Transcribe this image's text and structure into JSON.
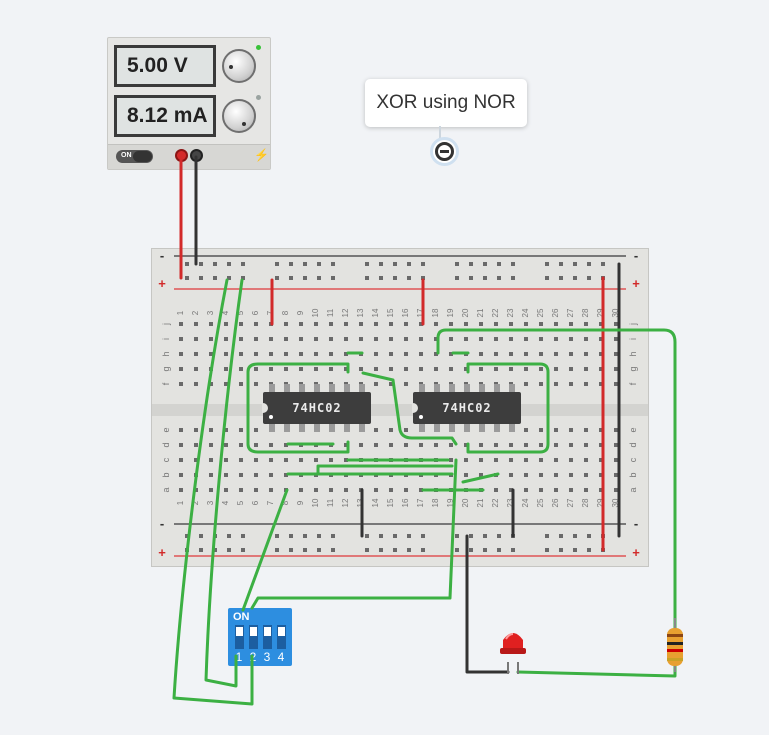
{
  "power_supply": {
    "voltage_display": "5.00 V",
    "current_display": "8.12 mA",
    "switch_label": "ON",
    "colors": {
      "positive_terminal": "#e02020",
      "negative_terminal": "#444444",
      "cv_led": "#38c238"
    }
  },
  "note": {
    "text": "XOR using NOR"
  },
  "breadboard": {
    "rail_signs_left": [
      "-",
      "+",
      "-",
      "+"
    ],
    "rail_signs_right": [
      "-",
      "+",
      "-",
      "+"
    ],
    "column_numbers": [
      1,
      2,
      3,
      4,
      5,
      6,
      7,
      8,
      9,
      10,
      11,
      12,
      13,
      14,
      15,
      16,
      17,
      18,
      19,
      20,
      21,
      22,
      23,
      24,
      25,
      26,
      27,
      28,
      29,
      30
    ],
    "row_letters_top": [
      "j",
      "i",
      "h",
      "g",
      "f"
    ],
    "row_letters_bottom": [
      "e",
      "d",
      "c",
      "b",
      "a"
    ],
    "colors": {
      "wire": "#3cb043",
      "red_wire": "#d22a2a",
      "black_wire": "#333333",
      "positive_rail": "#e05555",
      "negative_rail": "#555555"
    }
  },
  "chips": [
    {
      "label": "74HC02"
    },
    {
      "label": "74HC02"
    }
  ],
  "dip_switch": {
    "on_label": "ON",
    "switch_numbers": [
      "1",
      "2",
      "3",
      "4"
    ]
  },
  "led": {
    "color": "#e02020"
  },
  "resistor": {
    "color": "#e8a030"
  }
}
